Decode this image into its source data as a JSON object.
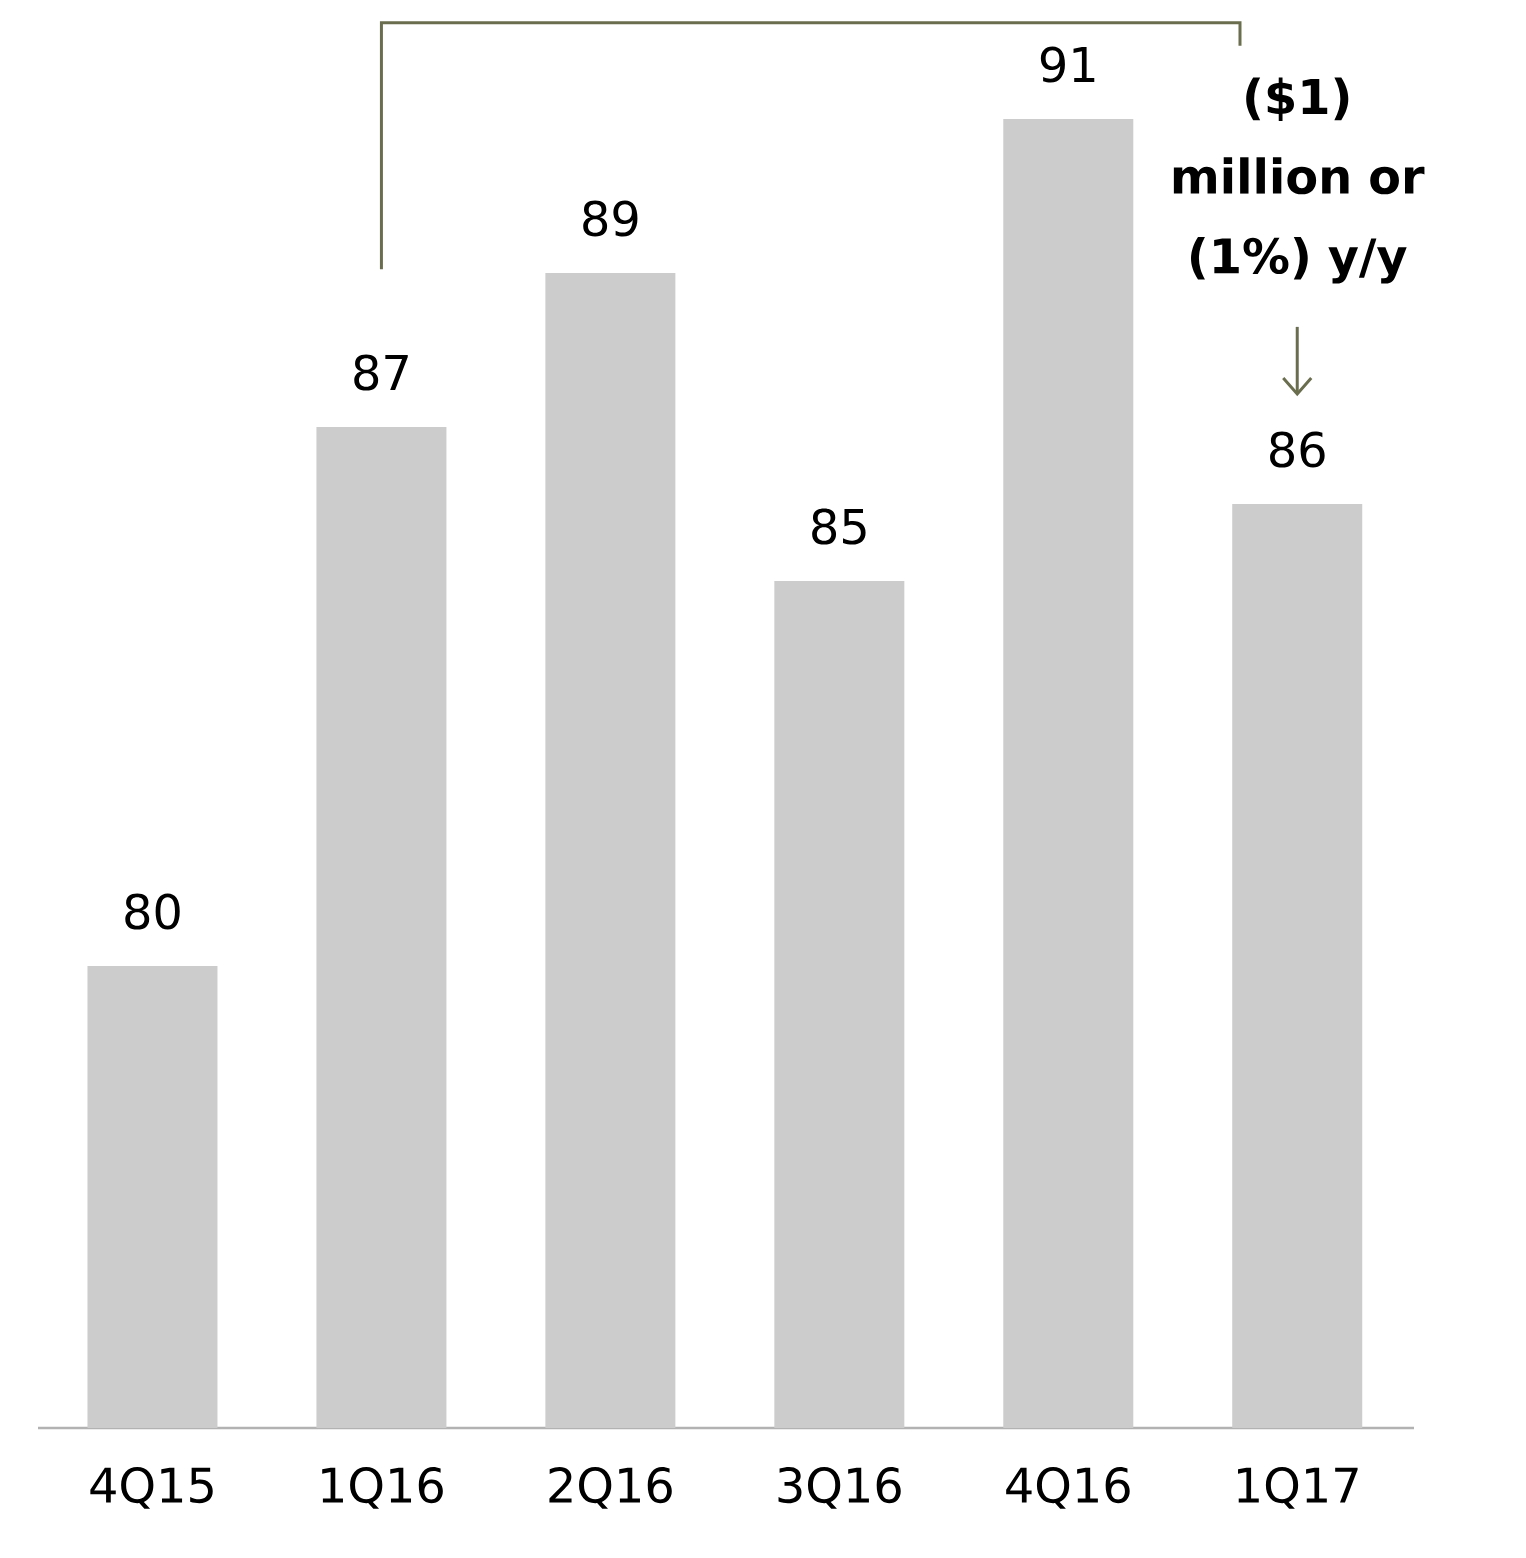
{
  "chart_data": {
    "type": "bar",
    "categories": [
      "4Q15",
      "1Q16",
      "2Q16",
      "3Q16",
      "4Q16",
      "1Q17"
    ],
    "values": [
      80,
      87,
      89,
      85,
      91,
      86
    ],
    "color": "#cccccc",
    "ylim": [
      74,
      91
    ],
    "data_labels": true,
    "tick_labels": "x",
    "annotations": [
      "($1) million or (1%) y/y"
    ]
  }
}
